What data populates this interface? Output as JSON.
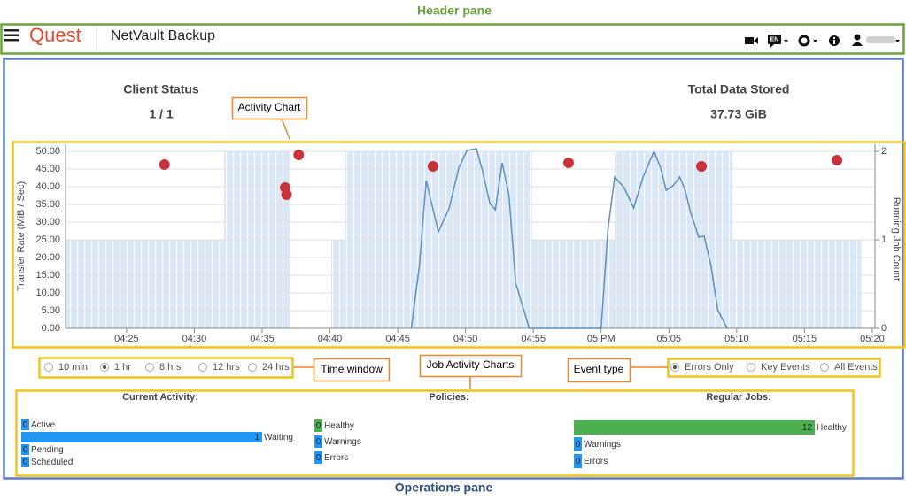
{
  "annotations": {
    "header_pane": "Header pane",
    "operations_pane": "Operations pane",
    "activity_chart": "Activity Chart",
    "time_window": "Time window",
    "job_activity_charts": "Job Activity Charts",
    "event_type": "Event type"
  },
  "header": {
    "logo": "Quest",
    "app_title": "NetVault Backup",
    "language": "EN"
  },
  "status": {
    "client_status": {
      "label": "Client Status",
      "value": "1 / 1"
    },
    "total_data_stored": {
      "label": "Total Data Stored",
      "value": "37.73 GiB"
    }
  },
  "activity_chart": {
    "type": "combo",
    "y_label": "Transfer Rate (MiB / Sec)",
    "y2_label": "Running Job Count",
    "xlim": [
      980.5,
      1040.2
    ],
    "xticks": [
      {
        "value": 985,
        "label": "04:25"
      },
      {
        "value": 990,
        "label": "04:30"
      },
      {
        "value": 995,
        "label": "04:35"
      },
      {
        "value": 1000,
        "label": "04:40"
      },
      {
        "value": 1005,
        "label": "04:45"
      },
      {
        "value": 1010,
        "label": "04:50"
      },
      {
        "value": 1015,
        "label": "04:55"
      },
      {
        "value": 1020,
        "label": "05 PM"
      },
      {
        "value": 1025,
        "label": "05:05"
      },
      {
        "value": 1030,
        "label": "05:10"
      },
      {
        "value": 1035,
        "label": "05:15"
      },
      {
        "value": 1040,
        "label": "05:20"
      }
    ],
    "ylim": [
      0,
      52
    ],
    "yticks": [
      {
        "value": 0,
        "label": "0.00"
      },
      {
        "value": 5,
        "label": "5.00"
      },
      {
        "value": 10,
        "label": "10.00"
      },
      {
        "value": 15,
        "label": "15.00"
      },
      {
        "value": 20,
        "label": "20.00"
      },
      {
        "value": 25,
        "label": "25.00"
      },
      {
        "value": 30,
        "label": "30.00"
      },
      {
        "value": 35,
        "label": "35.00"
      },
      {
        "value": 40,
        "label": "40.00"
      },
      {
        "value": 45,
        "label": "45.00"
      },
      {
        "value": 50,
        "label": "50.00"
      }
    ],
    "y2lim": [
      0,
      2.08
    ],
    "y2ticks": [
      0,
      1,
      2
    ],
    "grid": true,
    "running_jobs": {
      "axis": "y2",
      "color": "#dbe8f8",
      "bins": [
        980.5,
        992.2,
        997.1,
        1000.1,
        1001.1,
        1014.9,
        1021.0,
        1029.7,
        1039.2
      ],
      "counts": [
        1,
        2,
        0,
        1,
        2,
        1,
        2,
        1
      ]
    },
    "transfer_rate": {
      "color": "#5d90b8",
      "x": [
        1006.0,
        1006.6,
        1007.1,
        1007.5,
        1008.0,
        1008.8,
        1009.5,
        1010.1,
        1010.8,
        1011.2,
        1011.8,
        1012.2,
        1012.7,
        1013.2,
        1013.7,
        1014.7,
        1020.0,
        1020.5,
        1021.0,
        1021.7,
        1022.4,
        1023.1,
        1023.9,
        1024.4,
        1024.8,
        1025.3,
        1025.8,
        1026.2,
        1026.6,
        1027.2,
        1027.6,
        1028.1,
        1028.6,
        1029.3
      ],
      "values": [
        0,
        17.75,
        41.75,
        35.25,
        27.25,
        34,
        45.25,
        50.25,
        50.75,
        45.25,
        35.25,
        33.5,
        46.75,
        37.75,
        12.75,
        0,
        0,
        27.75,
        42.75,
        39.75,
        34,
        42.75,
        50,
        45.25,
        39,
        40.25,
        42.75,
        39,
        32.75,
        25.75,
        26,
        17.75,
        5.25,
        0
      ]
    },
    "events": {
      "color": "#c8323c",
      "x": [
        987.8,
        996.7,
        996.8,
        997.7,
        1007.6,
        1017.6,
        1027.4,
        1037.4
      ],
      "y": [
        46.25,
        39.75,
        37.75,
        49,
        45.75,
        46.75,
        45.75,
        47.5
      ]
    }
  },
  "time_window": {
    "options": [
      "10 min",
      "1 hr",
      "8 hrs",
      "12 hrs",
      "24 hrs"
    ],
    "selected": 1
  },
  "event_type": {
    "options": [
      "Errors Only",
      "Key Events",
      "All Events"
    ],
    "selected": 0
  },
  "job_activity": [
    {
      "title": "Current Activity:",
      "rows": [
        {
          "label": "Active",
          "value": 0,
          "color": "#2196f3"
        },
        {
          "label": "Waiting",
          "value": 1,
          "color": "#2196f3"
        },
        {
          "label": "Pending",
          "value": 0,
          "color": "#2196f3"
        },
        {
          "label": "Scheduled",
          "value": 0,
          "color": "#2196f3"
        }
      ]
    },
    {
      "title": "Policies:",
      "rows": [
        {
          "label": "Healthy",
          "value": 0,
          "color": "#4caf50"
        },
        {
          "label": "Warnings",
          "value": 0,
          "color": "#2196f3"
        },
        {
          "label": "Errors",
          "value": 0,
          "color": "#2196f3"
        }
      ]
    },
    {
      "title": "Regular Jobs:",
      "rows": [
        {
          "label": "Healthy",
          "value": 12,
          "color": "#4caf50"
        },
        {
          "label": "Warnings",
          "value": 0,
          "color": "#2196f3"
        },
        {
          "label": "Errors",
          "value": 0,
          "color": "#2196f3"
        }
      ]
    }
  ]
}
